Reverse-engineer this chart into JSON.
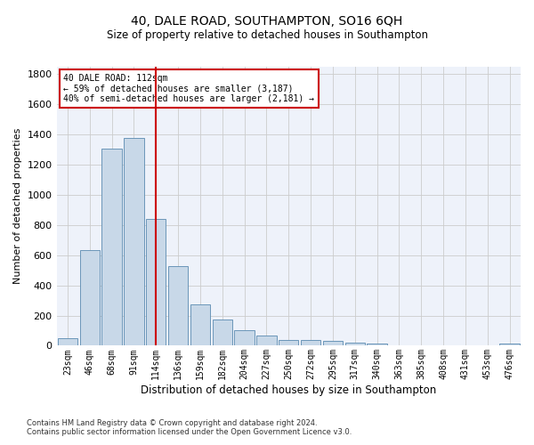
{
  "title": "40, DALE ROAD, SOUTHAMPTON, SO16 6QH",
  "subtitle": "Size of property relative to detached houses in Southampton",
  "xlabel": "Distribution of detached houses by size in Southampton",
  "ylabel": "Number of detached properties",
  "bar_color": "#c8d8e8",
  "bar_edge_color": "#5a8ab0",
  "grid_color": "#cccccc",
  "bg_color": "#eef2fa",
  "marker_color": "#cc0000",
  "annotation_title": "40 DALE ROAD: 112sqm",
  "annotation_line1": "← 59% of detached houses are smaller (3,187)",
  "annotation_line2": "40% of semi-detached houses are larger (2,181) →",
  "annotation_box_color": "#cc0000",
  "categories": [
    "23sqm",
    "46sqm",
    "68sqm",
    "91sqm",
    "114sqm",
    "136sqm",
    "159sqm",
    "182sqm",
    "204sqm",
    "227sqm",
    "250sqm",
    "272sqm",
    "295sqm",
    "317sqm",
    "340sqm",
    "363sqm",
    "385sqm",
    "408sqm",
    "431sqm",
    "453sqm",
    "476sqm"
  ],
  "values": [
    50,
    635,
    1305,
    1375,
    840,
    525,
    275,
    175,
    105,
    65,
    35,
    35,
    30,
    20,
    15,
    0,
    0,
    0,
    0,
    0,
    15
  ],
  "ylim": [
    0,
    1850
  ],
  "yticks": [
    0,
    200,
    400,
    600,
    800,
    1000,
    1200,
    1400,
    1600,
    1800
  ],
  "footnote1": "Contains HM Land Registry data © Crown copyright and database right 2024.",
  "footnote2": "Contains public sector information licensed under the Open Government Licence v3.0.",
  "title_fontsize": 10,
  "subtitle_fontsize": 8.5,
  "xlabel_fontsize": 8.5,
  "ylabel_fontsize": 8,
  "tick_fontsize": 7,
  "annot_fontsize": 7,
  "footnote_fontsize": 6
}
